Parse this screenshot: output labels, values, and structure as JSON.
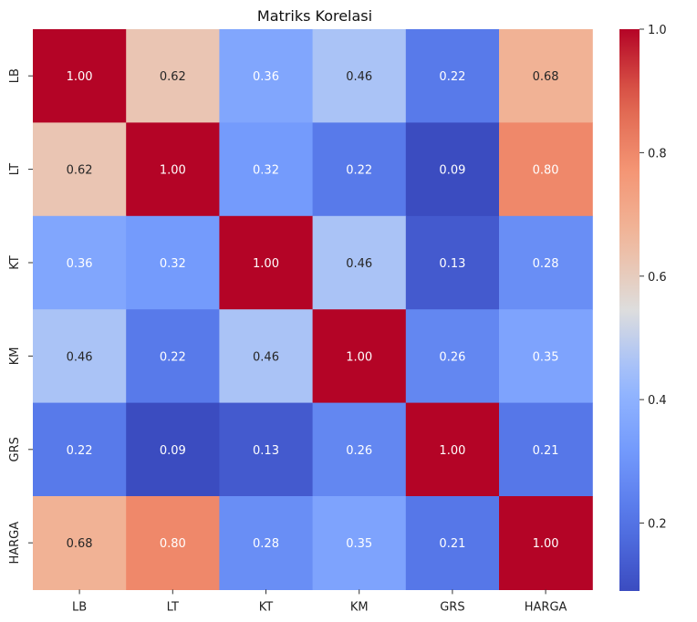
{
  "chart_data": {
    "type": "heatmap",
    "title": "Matriks Korelasi",
    "xlabel": "",
    "ylabel": "",
    "x_labels": [
      "LB",
      "LT",
      "KT",
      "KM",
      "GRS",
      "HARGA"
    ],
    "y_labels": [
      "LB",
      "LT",
      "KT",
      "KM",
      "GRS",
      "HARGA"
    ],
    "values": [
      [
        1.0,
        0.62,
        0.36,
        0.46,
        0.22,
        0.68
      ],
      [
        0.62,
        1.0,
        0.32,
        0.22,
        0.09,
        0.8
      ],
      [
        0.36,
        0.32,
        1.0,
        0.46,
        0.13,
        0.28
      ],
      [
        0.46,
        0.22,
        0.46,
        1.0,
        0.26,
        0.35
      ],
      [
        0.22,
        0.09,
        0.13,
        0.26,
        1.0,
        0.21
      ],
      [
        0.68,
        0.8,
        0.28,
        0.35,
        0.21,
        1.0
      ]
    ],
    "cell_labels": [
      [
        "1.00",
        "0.62",
        "0.36",
        "0.46",
        "0.22",
        "0.68"
      ],
      [
        "0.62",
        "1.00",
        "0.32",
        "0.22",
        "0.09",
        "0.80"
      ],
      [
        "0.36",
        "0.32",
        "1.00",
        "0.46",
        "0.13",
        "0.28"
      ],
      [
        "0.46",
        "0.22",
        "0.46",
        "1.00",
        "0.26",
        "0.35"
      ],
      [
        "0.22",
        "0.09",
        "0.13",
        "0.26",
        "1.00",
        "0.21"
      ],
      [
        "0.68",
        "0.80",
        "0.28",
        "0.35",
        "0.21",
        "1.00"
      ]
    ],
    "colormap": "coolwarm",
    "vmin": 0.09,
    "vmax": 1.0,
    "colorbar_ticks": [
      0.2,
      0.4,
      0.6,
      0.8,
      1.0
    ],
    "colorbar_tick_labels": [
      "0.2",
      "0.4",
      "0.6",
      "0.8",
      "1.0"
    ],
    "grid": false
  }
}
